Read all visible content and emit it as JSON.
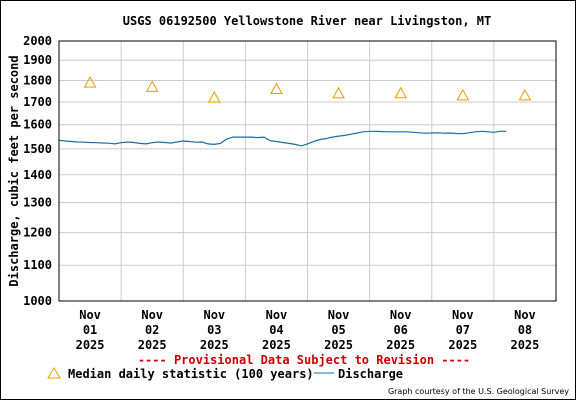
{
  "chart_data": {
    "type": "line",
    "title": "USGS 06192500 Yellowstone River near Livingston, MT",
    "ylabel": "Discharge, cubic feet per second",
    "xlabel": "",
    "ylim": [
      1000,
      2000
    ],
    "y_scale": "log",
    "grid": true,
    "y_ticks": [
      "1000",
      "1100",
      "1200",
      "1300",
      "1400",
      "1500",
      "1600",
      "1700",
      "1800",
      "1900",
      "2000"
    ],
    "x_ticks": [
      {
        "line1": "Nov",
        "line2": "01",
        "line3": "2025"
      },
      {
        "line1": "Nov",
        "line2": "02",
        "line3": "2025"
      },
      {
        "line1": "Nov",
        "line2": "03",
        "line3": "2025"
      },
      {
        "line1": "Nov",
        "line2": "04",
        "line3": "2025"
      },
      {
        "line1": "Nov",
        "line2": "05",
        "line3": "2025"
      },
      {
        "line1": "Nov",
        "line2": "06",
        "line3": "2025"
      },
      {
        "line1": "Nov",
        "line2": "07",
        "line3": "2025"
      },
      {
        "line1": "Nov",
        "line2": "08",
        "line3": "2025"
      }
    ],
    "series": [
      {
        "name": "Median daily statistic (100 years)",
        "marker": "triangle",
        "color": "#e6a000",
        "x": [
          0.5,
          1.5,
          2.5,
          3.5,
          4.5,
          5.5,
          6.5,
          7.5
        ],
        "values": [
          1790,
          1770,
          1720,
          1760,
          1740,
          1740,
          1730,
          1730
        ]
      },
      {
        "name": "Discharge",
        "marker": "line",
        "color": "#1a6fa0",
        "x": [
          0,
          0.1,
          0.2,
          0.3,
          0.4,
          0.5,
          0.6,
          0.7,
          0.8,
          0.9,
          1.0,
          1.1,
          1.2,
          1.3,
          1.4,
          1.5,
          1.6,
          1.7,
          1.8,
          1.9,
          2.0,
          2.1,
          2.2,
          2.3,
          2.4,
          2.5,
          2.6,
          2.7,
          2.8,
          2.9,
          3.0,
          3.1,
          3.2,
          3.3,
          3.4,
          3.5,
          3.6,
          3.7,
          3.8,
          3.9,
          4.0,
          4.1,
          4.2,
          4.3,
          4.4,
          4.5,
          4.6,
          4.7,
          4.8,
          4.9,
          5.0,
          5.1,
          5.2,
          5.3,
          5.4,
          5.5,
          5.6,
          5.7,
          5.8,
          5.9,
          6.0,
          6.1,
          6.2,
          6.3,
          6.4,
          6.5,
          6.6,
          6.7,
          6.8,
          6.9,
          7.0,
          7.1,
          7.2
        ],
        "values": [
          1535,
          1532,
          1530,
          1528,
          1527,
          1526,
          1525,
          1524,
          1523,
          1520,
          1525,
          1528,
          1526,
          1522,
          1520,
          1525,
          1528,
          1526,
          1524,
          1528,
          1532,
          1530,
          1527,
          1528,
          1520,
          1518,
          1522,
          1540,
          1548,
          1548,
          1548,
          1548,
          1546,
          1548,
          1533,
          1530,
          1526,
          1522,
          1518,
          1512,
          1520,
          1530,
          1538,
          1542,
          1548,
          1552,
          1555,
          1560,
          1565,
          1570,
          1572,
          1572,
          1571,
          1570,
          1570,
          1570,
          1570,
          1568,
          1566,
          1564,
          1565,
          1566,
          1564,
          1565,
          1563,
          1562,
          1566,
          1570,
          1572,
          1570,
          1568,
          1572,
          1572
        ]
      }
    ]
  },
  "provisional_notice": "---- Provisional Data Subject to Revision ----",
  "legend": {
    "median_label": "Median daily statistic (100 years)",
    "discharge_label": "Discharge"
  },
  "credit": "Graph courtesy of the U.S. Geological Survey",
  "colors": {
    "grid": "#cccccc",
    "provisional": "#cc0000",
    "median": "#e6a000",
    "discharge": "#1a6fa0"
  }
}
